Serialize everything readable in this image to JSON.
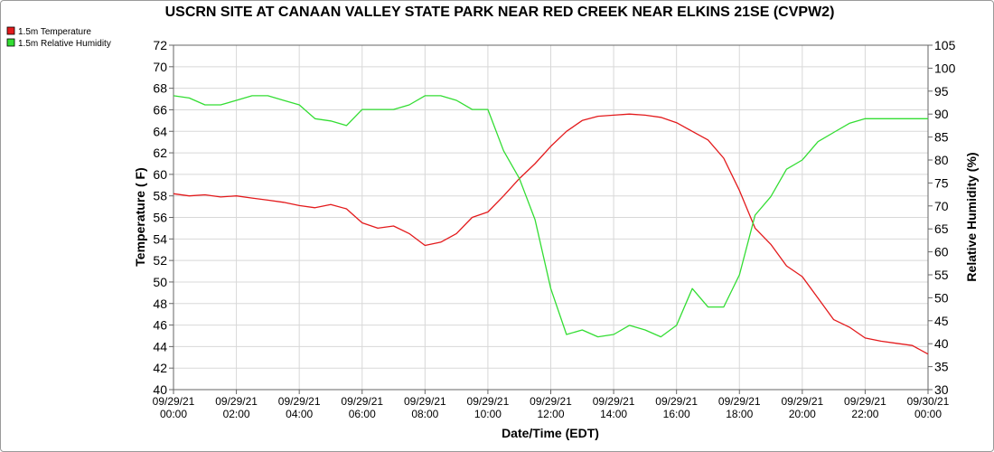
{
  "chart_data": {
    "type": "line",
    "title": "USCRN SITE AT CANAAN VALLEY STATE PARK NEAR RED CREEK NEAR ELKINS 21SE (CVPW2)",
    "xlabel": "Date/Time (EDT)",
    "ylabel": "Temperature ( F)",
    "y2label": "Relative Humidity (%)",
    "ylim": [
      40,
      72
    ],
    "y2lim": [
      30,
      105
    ],
    "xlim_hours": [
      0,
      24
    ],
    "grid": true,
    "legend_position": "top-left",
    "x_ticks": [
      {
        "hour": 0,
        "date": "09/29/21",
        "time": "00:00"
      },
      {
        "hour": 2,
        "date": "09/29/21",
        "time": "02:00"
      },
      {
        "hour": 4,
        "date": "09/29/21",
        "time": "04:00"
      },
      {
        "hour": 6,
        "date": "09/29/21",
        "time": "06:00"
      },
      {
        "hour": 8,
        "date": "09/29/21",
        "time": "08:00"
      },
      {
        "hour": 10,
        "date": "09/29/21",
        "time": "10:00"
      },
      {
        "hour": 12,
        "date": "09/29/21",
        "time": "12:00"
      },
      {
        "hour": 14,
        "date": "09/29/21",
        "time": "14:00"
      },
      {
        "hour": 16,
        "date": "09/29/21",
        "time": "16:00"
      },
      {
        "hour": 18,
        "date": "09/29/21",
        "time": "18:00"
      },
      {
        "hour": 20,
        "date": "09/29/21",
        "time": "20:00"
      },
      {
        "hour": 22,
        "date": "09/29/21",
        "time": "22:00"
      },
      {
        "hour": 24,
        "date": "09/30/21",
        "time": "00:00"
      }
    ],
    "y_ticks": [
      40,
      42,
      44,
      46,
      48,
      50,
      52,
      54,
      56,
      58,
      60,
      62,
      64,
      66,
      68,
      70,
      72
    ],
    "y2_ticks": [
      30,
      35,
      40,
      45,
      50,
      55,
      60,
      65,
      70,
      75,
      80,
      85,
      90,
      95,
      100,
      105
    ],
    "series": [
      {
        "name": "1.5m Temperature",
        "axis": "left",
        "color": "#e31a1c",
        "points": [
          [
            0,
            58.2
          ],
          [
            0.5,
            58.0
          ],
          [
            1.0,
            58.1
          ],
          [
            1.5,
            57.9
          ],
          [
            2.0,
            58.0
          ],
          [
            2.5,
            57.8
          ],
          [
            3.0,
            57.6
          ],
          [
            3.5,
            57.4
          ],
          [
            4.0,
            57.1
          ],
          [
            4.5,
            56.9
          ],
          [
            5.0,
            57.2
          ],
          [
            5.5,
            56.8
          ],
          [
            6.0,
            55.5
          ],
          [
            6.5,
            55.0
          ],
          [
            7.0,
            55.2
          ],
          [
            7.5,
            54.5
          ],
          [
            8.0,
            53.4
          ],
          [
            8.5,
            53.7
          ],
          [
            9.0,
            54.5
          ],
          [
            9.5,
            56.0
          ],
          [
            10.0,
            56.5
          ],
          [
            10.5,
            58.0
          ],
          [
            11.0,
            59.6
          ],
          [
            11.5,
            61.0
          ],
          [
            12.0,
            62.6
          ],
          [
            12.5,
            64.0
          ],
          [
            13.0,
            65.0
          ],
          [
            13.5,
            65.4
          ],
          [
            14.0,
            65.5
          ],
          [
            14.5,
            65.6
          ],
          [
            15.0,
            65.5
          ],
          [
            15.5,
            65.3
          ],
          [
            16.0,
            64.8
          ],
          [
            16.5,
            64.0
          ],
          [
            17.0,
            63.2
          ],
          [
            17.5,
            61.5
          ],
          [
            18.0,
            58.5
          ],
          [
            18.5,
            55.0
          ],
          [
            19.0,
            53.5
          ],
          [
            19.5,
            51.5
          ],
          [
            20.0,
            50.5
          ],
          [
            20.5,
            48.5
          ],
          [
            21.0,
            46.5
          ],
          [
            21.5,
            45.8
          ],
          [
            22.0,
            44.8
          ],
          [
            22.5,
            44.5
          ],
          [
            23.0,
            44.3
          ],
          [
            23.5,
            44.1
          ],
          [
            24.0,
            43.3
          ]
        ]
      },
      {
        "name": "1.5m Relative Humidity",
        "axis": "right",
        "color": "#33dd33",
        "points": [
          [
            0,
            94
          ],
          [
            0.5,
            93.5
          ],
          [
            1.0,
            92
          ],
          [
            1.5,
            92
          ],
          [
            2.0,
            93
          ],
          [
            2.5,
            94
          ],
          [
            3.0,
            94
          ],
          [
            3.5,
            93
          ],
          [
            4.0,
            92
          ],
          [
            4.5,
            89
          ],
          [
            5.0,
            88.5
          ],
          [
            5.5,
            87.5
          ],
          [
            6.0,
            91
          ],
          [
            6.5,
            91
          ],
          [
            7.0,
            91
          ],
          [
            7.5,
            92
          ],
          [
            8.0,
            94
          ],
          [
            8.5,
            94
          ],
          [
            9.0,
            93
          ],
          [
            9.5,
            91
          ],
          [
            10.0,
            91
          ],
          [
            10.5,
            82
          ],
          [
            11.0,
            76
          ],
          [
            11.5,
            67
          ],
          [
            12.0,
            52
          ],
          [
            12.5,
            42
          ],
          [
            13.0,
            43
          ],
          [
            13.5,
            41.5
          ],
          [
            14.0,
            42
          ],
          [
            14.5,
            44
          ],
          [
            15.0,
            43
          ],
          [
            15.5,
            41.5
          ],
          [
            16.0,
            44
          ],
          [
            16.5,
            52
          ],
          [
            17.0,
            48
          ],
          [
            17.5,
            48
          ],
          [
            18.0,
            55
          ],
          [
            18.5,
            68
          ],
          [
            19.0,
            72
          ],
          [
            19.5,
            78
          ],
          [
            20.0,
            80
          ],
          [
            20.5,
            84
          ],
          [
            21.0,
            86
          ],
          [
            21.5,
            88
          ],
          [
            22.0,
            89
          ],
          [
            22.5,
            89
          ],
          [
            23.0,
            89
          ],
          [
            23.5,
            89
          ],
          [
            24.0,
            89
          ]
        ]
      }
    ]
  }
}
